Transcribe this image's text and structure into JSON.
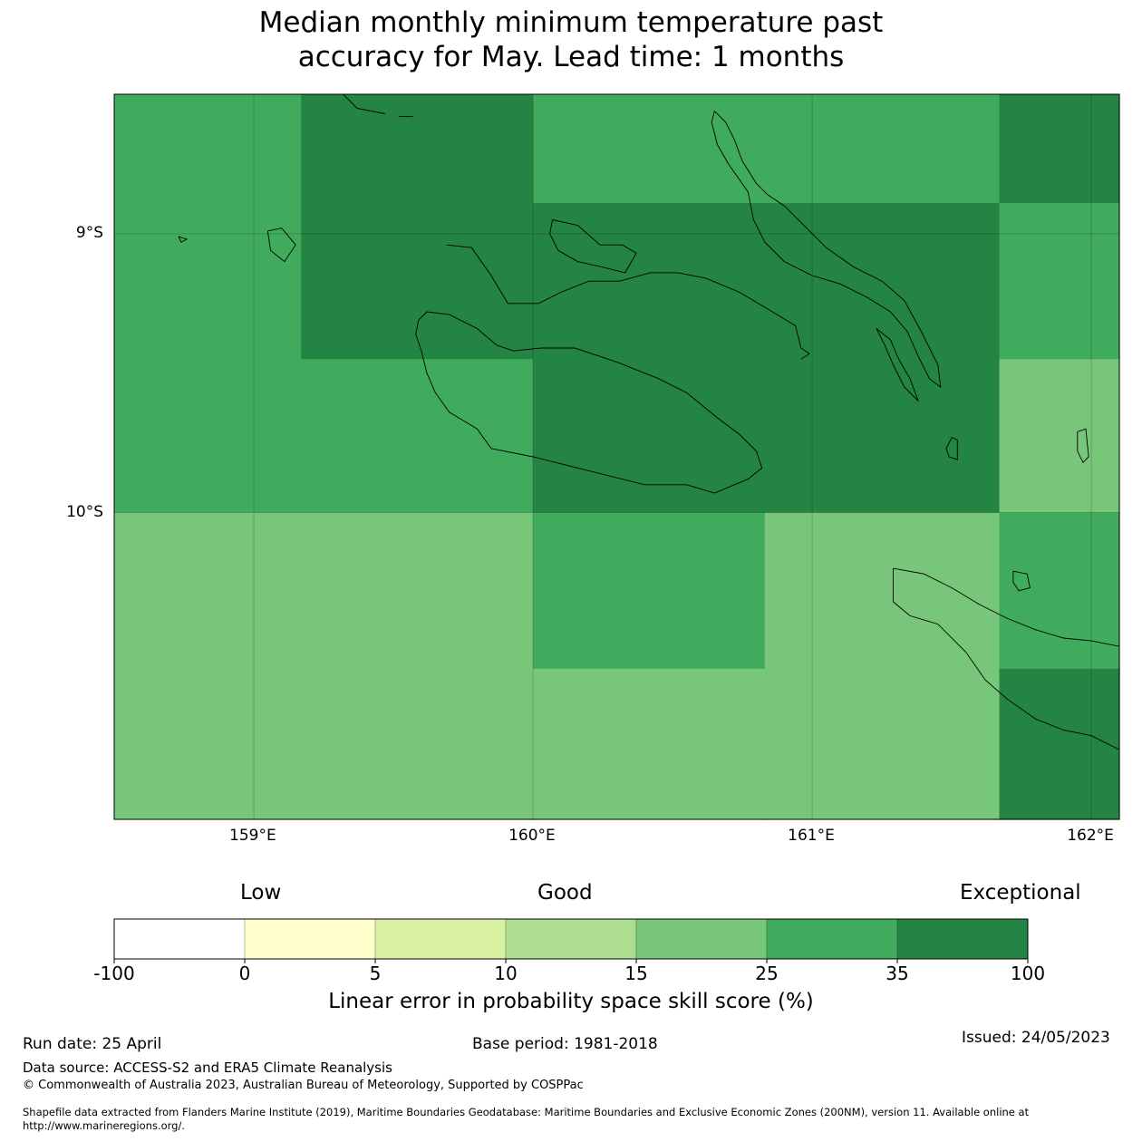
{
  "title": {
    "line1": "Median monthly minimum temperature past",
    "line2": "accuracy for May. Lead time: 1 months"
  },
  "map": {
    "lon_range": [
      158.5,
      162.1
    ],
    "lat_range": [
      -11.1,
      -8.5
    ],
    "lon_ticks": [
      {
        "value": 159,
        "label": "159°E"
      },
      {
        "value": 160,
        "label": "160°E"
      },
      {
        "value": 161,
        "label": "161°E"
      },
      {
        "value": 162,
        "label": "162°E"
      }
    ],
    "lat_ticks": [
      {
        "value": -9,
        "label": "9°S"
      },
      {
        "value": -10,
        "label": "10°S"
      }
    ],
    "cells": [
      {
        "lon": [
          158.5,
          159.17
        ],
        "lat": [
          -10.0,
          -8.5
        ],
        "cat": 5
      },
      {
        "lon": [
          159.17,
          160.0
        ],
        "lat": [
          -8.87,
          -8.5
        ],
        "cat": 6
      },
      {
        "lon": [
          159.17,
          160.0
        ],
        "lat": [
          -9.45,
          -8.87
        ],
        "cat": 6
      },
      {
        "lon": [
          159.17,
          160.0
        ],
        "lat": [
          -10.0,
          -9.45
        ],
        "cat": 5
      },
      {
        "lon": [
          160.0,
          161.67
        ],
        "lat": [
          -8.89,
          -8.5
        ],
        "cat": 5
      },
      {
        "lon": [
          160.0,
          161.67
        ],
        "lat": [
          -10.0,
          -8.89
        ],
        "cat": 6
      },
      {
        "lon": [
          161.67,
          162.1
        ],
        "lat": [
          -8.89,
          -8.5
        ],
        "cat": 6
      },
      {
        "lon": [
          161.67,
          162.1
        ],
        "lat": [
          -9.45,
          -8.89
        ],
        "cat": 5
      },
      {
        "lon": [
          161.67,
          162.1
        ],
        "lat": [
          -10.0,
          -9.45
        ],
        "cat": 4
      },
      {
        "lon": [
          158.5,
          160.0
        ],
        "lat": [
          -11.1,
          -10.0
        ],
        "cat": 4
      },
      {
        "lon": [
          160.0,
          160.83
        ],
        "lat": [
          -10.56,
          -10.0
        ],
        "cat": 5
      },
      {
        "lon": [
          160.0,
          160.83
        ],
        "lat": [
          -11.1,
          -10.56
        ],
        "cat": 4
      },
      {
        "lon": [
          160.83,
          161.67
        ],
        "lat": [
          -11.1,
          -10.0
        ],
        "cat": 4
      },
      {
        "lon": [
          161.67,
          162.1
        ],
        "lat": [
          -10.56,
          -10.0
        ],
        "cat": 5
      },
      {
        "lon": [
          161.67,
          162.1
        ],
        "lat": [
          -11.1,
          -10.56
        ],
        "cat": 6
      }
    ],
    "coastlines": [
      [
        [
          159.59,
          -9.31
        ],
        [
          159.62,
          -9.28
        ],
        [
          159.7,
          -9.29
        ],
        [
          159.8,
          -9.34
        ],
        [
          159.87,
          -9.4
        ],
        [
          159.93,
          -9.42
        ],
        [
          160.03,
          -9.41
        ],
        [
          160.15,
          -9.41
        ],
        [
          160.3,
          -9.46
        ],
        [
          160.45,
          -9.52
        ],
        [
          160.55,
          -9.57
        ],
        [
          160.66,
          -9.66
        ],
        [
          160.74,
          -9.72
        ],
        [
          160.8,
          -9.78
        ],
        [
          160.82,
          -9.84
        ],
        [
          160.77,
          -9.88
        ],
        [
          160.65,
          -9.93
        ],
        [
          160.55,
          -9.9
        ],
        [
          160.4,
          -9.9
        ],
        [
          160.2,
          -9.85
        ],
        [
          160.0,
          -9.8
        ],
        [
          159.85,
          -9.77
        ],
        [
          159.8,
          -9.7
        ],
        [
          159.7,
          -9.64
        ],
        [
          159.65,
          -9.57
        ],
        [
          159.62,
          -9.5
        ],
        [
          159.6,
          -9.42
        ],
        [
          159.58,
          -9.36
        ],
        [
          159.59,
          -9.31
        ]
      ],
      [
        [
          159.69,
          -9.04
        ],
        [
          159.78,
          -9.05
        ],
        [
          159.85,
          -9.15
        ],
        [
          159.91,
          -9.25
        ],
        [
          160.02,
          -9.25
        ],
        [
          160.1,
          -9.21
        ],
        [
          160.2,
          -9.17
        ],
        [
          160.31,
          -9.17
        ],
        [
          160.42,
          -9.14
        ],
        [
          160.52,
          -9.14
        ],
        [
          160.62,
          -9.16
        ],
        [
          160.74,
          -9.21
        ],
        [
          160.84,
          -9.27
        ],
        [
          160.94,
          -9.33
        ],
        [
          160.96,
          -9.41
        ],
        [
          160.99,
          -9.43
        ],
        [
          160.96,
          -9.45
        ]
      ],
      [
        [
          160.07,
          -8.95
        ],
        [
          160.16,
          -8.97
        ],
        [
          160.24,
          -9.04
        ],
        [
          160.32,
          -9.04
        ],
        [
          160.37,
          -9.07
        ],
        [
          160.33,
          -9.14
        ],
        [
          160.25,
          -9.12
        ],
        [
          160.16,
          -9.1
        ],
        [
          160.09,
          -9.06
        ],
        [
          160.06,
          -9.0
        ],
        [
          160.07,
          -8.95
        ]
      ],
      [
        [
          160.65,
          -8.56
        ],
        [
          160.69,
          -8.6
        ],
        [
          160.72,
          -8.66
        ],
        [
          160.75,
          -8.74
        ],
        [
          160.8,
          -8.82
        ],
        [
          160.84,
          -8.86
        ],
        [
          160.9,
          -8.9
        ],
        [
          160.97,
          -8.97
        ],
        [
          161.05,
          -9.05
        ],
        [
          161.15,
          -9.12
        ],
        [
          161.25,
          -9.17
        ],
        [
          161.33,
          -9.24
        ],
        [
          161.39,
          -9.35
        ],
        [
          161.45,
          -9.47
        ],
        [
          161.46,
          -9.55
        ],
        [
          161.42,
          -9.52
        ],
        [
          161.38,
          -9.44
        ],
        [
          161.34,
          -9.35
        ],
        [
          161.28,
          -9.28
        ],
        [
          161.2,
          -9.23
        ],
        [
          161.1,
          -9.18
        ],
        [
          161.0,
          -9.15
        ],
        [
          160.9,
          -9.1
        ],
        [
          160.83,
          -9.03
        ],
        [
          160.79,
          -8.95
        ],
        [
          160.77,
          -8.85
        ],
        [
          160.7,
          -8.75
        ],
        [
          160.66,
          -8.68
        ],
        [
          160.64,
          -8.6
        ],
        [
          160.65,
          -8.56
        ]
      ],
      [
        [
          161.23,
          -9.34
        ],
        [
          161.28,
          -9.38
        ],
        [
          161.31,
          -9.45
        ],
        [
          161.35,
          -9.52
        ],
        [
          161.38,
          -9.6
        ],
        [
          161.33,
          -9.55
        ],
        [
          161.29,
          -9.47
        ],
        [
          161.26,
          -9.4
        ],
        [
          161.23,
          -9.34
        ]
      ],
      [
        [
          159.32,
          -8.5
        ],
        [
          159.37,
          -8.55
        ],
        [
          159.42,
          -8.56
        ],
        [
          159.47,
          -8.57
        ]
      ],
      [
        [
          159.52,
          -8.58
        ],
        [
          159.57,
          -8.58
        ]
      ],
      [
        [
          161.5,
          -9.73
        ],
        [
          161.52,
          -9.74
        ],
        [
          161.52,
          -9.81
        ],
        [
          161.49,
          -9.8
        ],
        [
          161.48,
          -9.77
        ],
        [
          161.5,
          -9.73
        ]
      ],
      [
        [
          161.29,
          -10.2
        ],
        [
          161.4,
          -10.22
        ],
        [
          161.5,
          -10.27
        ],
        [
          161.6,
          -10.33
        ],
        [
          161.7,
          -10.38
        ],
        [
          161.8,
          -10.42
        ],
        [
          161.9,
          -10.45
        ],
        [
          162.0,
          -10.46
        ],
        [
          162.1,
          -10.48
        ]
      ],
      [
        [
          161.29,
          -10.2
        ],
        [
          161.29,
          -10.32
        ],
        [
          161.35,
          -10.37
        ],
        [
          161.45,
          -10.4
        ],
        [
          161.55,
          -10.5
        ],
        [
          161.62,
          -10.6
        ],
        [
          161.7,
          -10.67
        ],
        [
          161.8,
          -10.74
        ],
        [
          161.9,
          -10.78
        ],
        [
          162.0,
          -10.8
        ],
        [
          162.1,
          -10.85
        ]
      ],
      [
        [
          161.72,
          -10.21
        ],
        [
          161.77,
          -10.22
        ],
        [
          161.78,
          -10.27
        ],
        [
          161.74,
          -10.28
        ],
        [
          161.72,
          -10.25
        ],
        [
          161.72,
          -10.21
        ]
      ],
      [
        [
          161.95,
          -9.71
        ],
        [
          161.98,
          -9.7
        ],
        [
          161.99,
          -9.8
        ],
        [
          161.97,
          -9.82
        ],
        [
          161.95,
          -9.78
        ],
        [
          161.95,
          -9.71
        ]
      ],
      [
        [
          158.73,
          -9.01
        ],
        [
          158.76,
          -9.02
        ],
        [
          158.74,
          -9.03
        ],
        [
          158.73,
          -9.01
        ]
      ],
      [
        [
          159.05,
          -8.99
        ],
        [
          159.1,
          -8.98
        ],
        [
          159.15,
          -9.04
        ],
        [
          159.11,
          -9.1
        ],
        [
          159.06,
          -9.06
        ],
        [
          159.05,
          -8.99
        ]
      ]
    ]
  },
  "colorbar": {
    "categories": [
      {
        "color": "#ffffff"
      },
      {
        "color": "#ffffcc"
      },
      {
        "color": "#d9f0a3"
      },
      {
        "color": "#addd8e"
      },
      {
        "color": "#78c679"
      },
      {
        "color": "#41ab5d"
      },
      {
        "color": "#238443"
      }
    ],
    "ticks": [
      "-100",
      "0",
      "5",
      "10",
      "15",
      "25",
      "35",
      "100"
    ],
    "words": {
      "low": "Low",
      "good": "Good",
      "exceptional": "Exceptional"
    },
    "title": "Linear error in probability space skill score (%)"
  },
  "footer": {
    "run_date": "Run date: 25 April",
    "base_period": "Base period: 1981-2018",
    "issued": "Issued: 24/05/2023",
    "data_source": "Data source: ACCESS-S2 and ERA5 Climate Reanalysis",
    "copyright": "© Commonwealth of Australia 2023, Australian Bureau of Meteorology, Supported by COSPPac",
    "shapefile_line1": "Shapefile data extracted from Flanders Marine Institute (2019), Maritime Boundaries Geodatabase: Maritime Boundaries and Exclusive Economic Zones (200NM), version 11. Available online at",
    "shapefile_line2": "http://www.marineregions.org/."
  }
}
